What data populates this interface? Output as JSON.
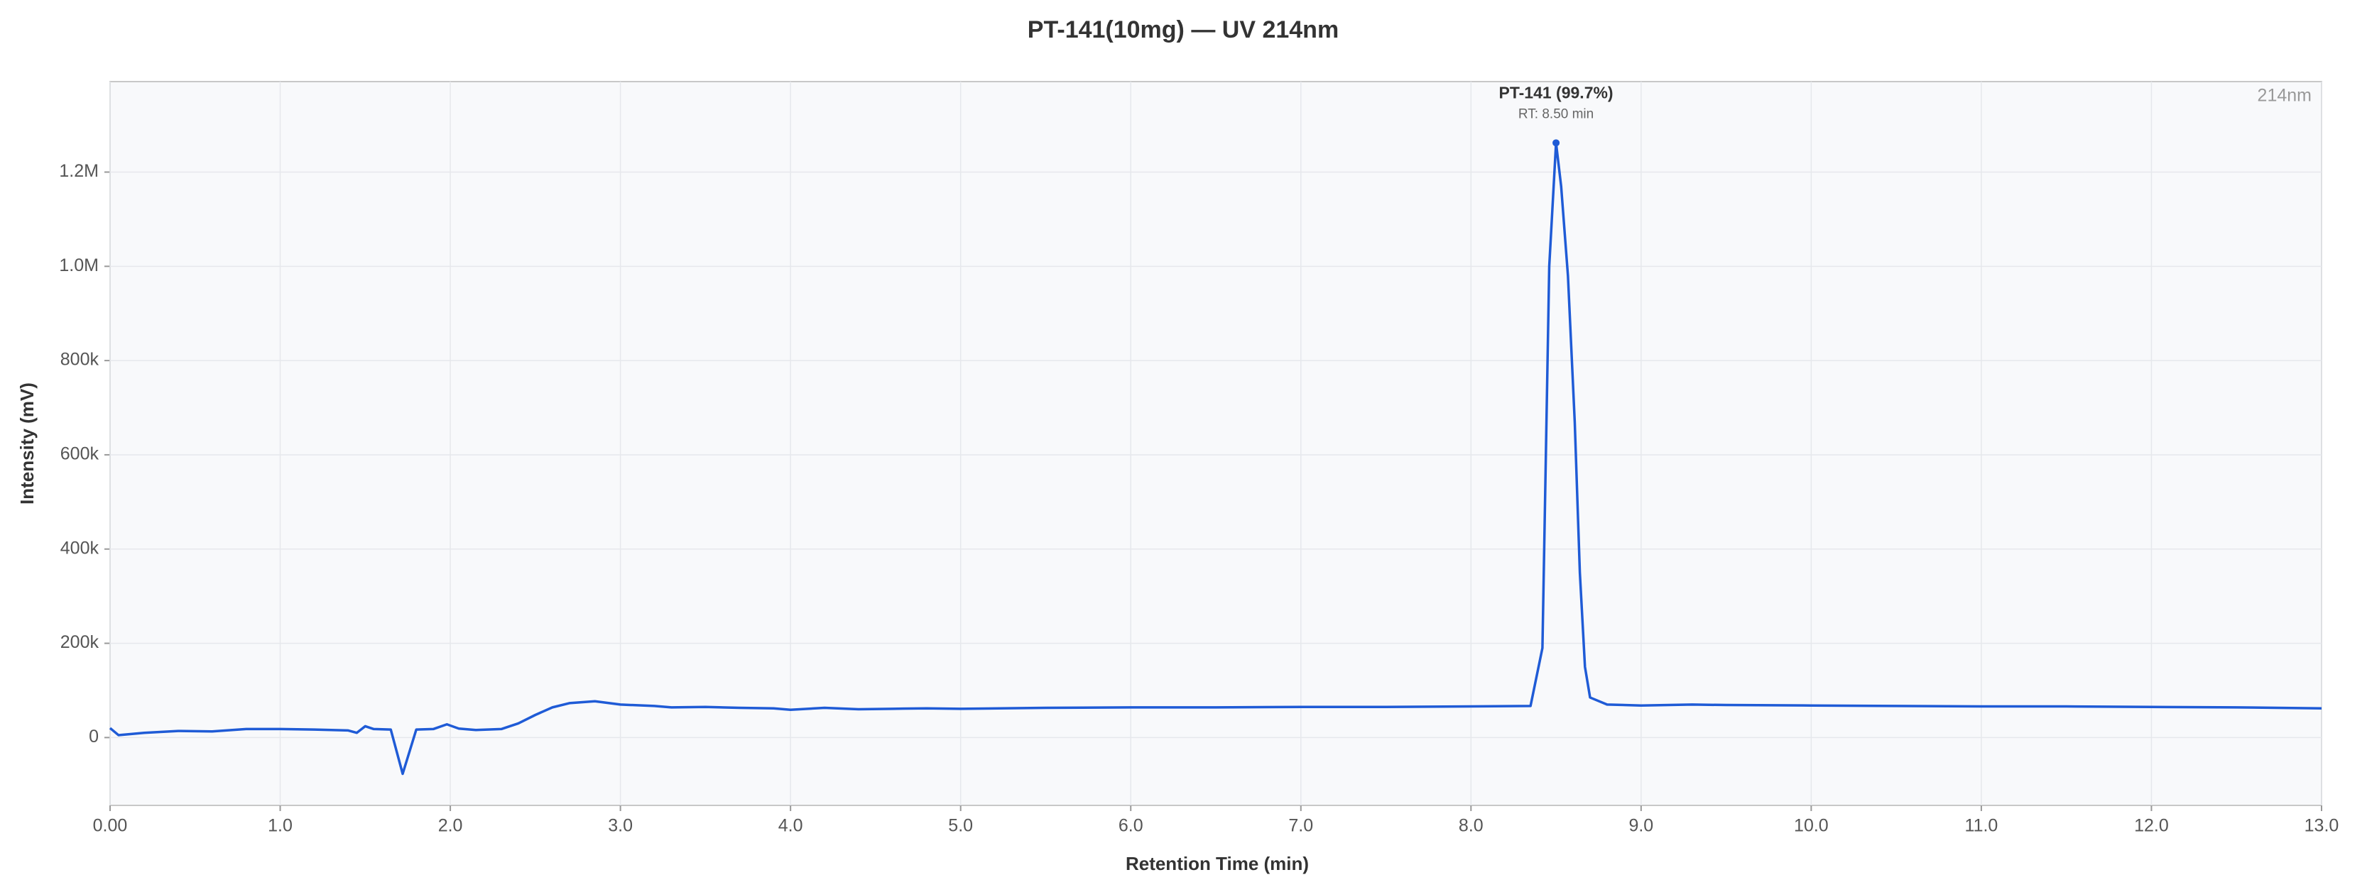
{
  "chart_data": {
    "type": "line",
    "title": "PT-141(10mg) — UV 214nm",
    "xlabel": "Retention Time (min)",
    "ylabel": "Intensity (mV)",
    "channel_label": "214nm",
    "color": "#1f5bd6",
    "grid": true,
    "xlim": [
      0,
      13
    ],
    "ylim": [
      -144000,
      1392000
    ],
    "xticks": [
      {
        "value": 0,
        "label": "0.00"
      },
      {
        "value": 1,
        "label": "1.0"
      },
      {
        "value": 2,
        "label": "2.0"
      },
      {
        "value": 3,
        "label": "3.0"
      },
      {
        "value": 4,
        "label": "4.0"
      },
      {
        "value": 5,
        "label": "5.0"
      },
      {
        "value": 6,
        "label": "6.0"
      },
      {
        "value": 7,
        "label": "7.0"
      },
      {
        "value": 8,
        "label": "8.0"
      },
      {
        "value": 9,
        "label": "9.0"
      },
      {
        "value": 10,
        "label": "10.0"
      },
      {
        "value": 11,
        "label": "11.0"
      },
      {
        "value": 12,
        "label": "12.0"
      },
      {
        "value": 13,
        "label": "13.0"
      }
    ],
    "yticks": [
      0,
      {
        "value": 200000,
        "label": "200k"
      },
      {
        "value": 400000,
        "label": "400k"
      },
      {
        "value": 600000,
        "label": "600k"
      },
      {
        "value": 800000,
        "label": "800k"
      },
      {
        "value": 1000000,
        "label": "1.0M"
      },
      {
        "value": 1200000,
        "label": "1.2M"
      }
    ],
    "x": [
      0,
      0.05,
      0.2,
      0.4,
      0.6,
      0.8,
      1.0,
      1.2,
      1.4,
      1.45,
      1.5,
      1.55,
      1.65,
      1.72,
      1.8,
      1.9,
      1.98,
      2.05,
      2.15,
      2.3,
      2.4,
      2.5,
      2.6,
      2.7,
      2.85,
      3.0,
      3.2,
      3.3,
      3.5,
      3.7,
      3.9,
      4.0,
      4.2,
      4.4,
      4.6,
      4.8,
      5.0,
      5.5,
      6.0,
      6.5,
      7.0,
      7.5,
      8.0,
      8.35,
      8.42,
      8.46,
      8.5,
      8.53,
      8.57,
      8.61,
      8.64,
      8.67,
      8.7,
      8.8,
      9.0,
      9.3,
      9.5,
      10.0,
      10.5,
      11.0,
      11.5,
      12.0,
      12.5,
      13.0
    ],
    "values": [
      20000,
      5000,
      10000,
      14000,
      13000,
      18000,
      18000,
      17000,
      15000,
      10000,
      24000,
      18000,
      17000,
      -77000,
      17000,
      18000,
      28000,
      19000,
      16000,
      18000,
      30000,
      48000,
      64000,
      73000,
      77000,
      70000,
      67000,
      64000,
      65000,
      63000,
      62000,
      59000,
      63000,
      60000,
      61000,
      62000,
      61000,
      63000,
      64000,
      64000,
      65000,
      65000,
      66000,
      67000,
      190000,
      1000000,
      1262000,
      1170000,
      980000,
      669000,
      350000,
      150000,
      85000,
      70000,
      68000,
      70000,
      69000,
      68000,
      67000,
      66000,
      66000,
      65000,
      64000,
      62000
    ],
    "peak": {
      "x": 8.5,
      "y": 1262000,
      "label": "PT-141 (99.7%)",
      "sublabel": "RT: 8.50 min"
    }
  }
}
